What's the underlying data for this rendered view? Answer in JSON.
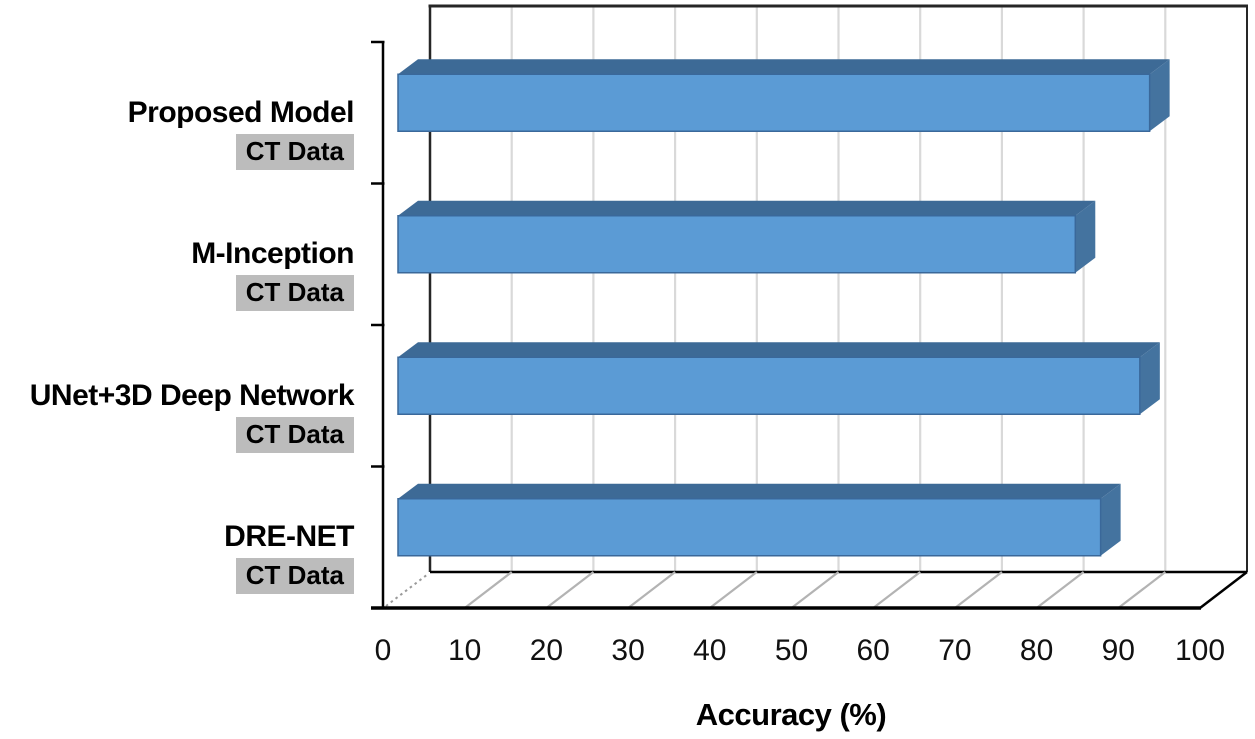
{
  "chart_data": {
    "type": "bar",
    "orientation": "horizontal",
    "style": "3d",
    "title": "",
    "xlabel": "Accuracy (%)",
    "categories": [
      "Proposed Model",
      "M-Inception",
      "UNet+3D Deep Network",
      "DRE-NET"
    ],
    "category_sublabels": [
      "CT Data",
      "CT Data",
      "CT Data",
      "CT Data"
    ],
    "values": [
      92,
      82.9,
      90.8,
      86
    ],
    "xlim": [
      0,
      100
    ],
    "xticks": [
      0,
      10,
      20,
      30,
      40,
      50,
      60,
      70,
      80,
      90,
      100
    ],
    "grid": true,
    "legend": false,
    "colors": {
      "bar_front": "#5b9bd5",
      "bar_top": "#3d6a96",
      "bar_side": "#44739f",
      "bar_outline": "#3a689a",
      "gridline": "#d9d9d9",
      "wall_edge": "#262626",
      "floor_diagonal": "#b3b3b3",
      "zero_diagonal": "#9a9a9a",
      "axis": "#000000",
      "badge_bg": "#bcbcbc",
      "text": "#000000"
    }
  }
}
